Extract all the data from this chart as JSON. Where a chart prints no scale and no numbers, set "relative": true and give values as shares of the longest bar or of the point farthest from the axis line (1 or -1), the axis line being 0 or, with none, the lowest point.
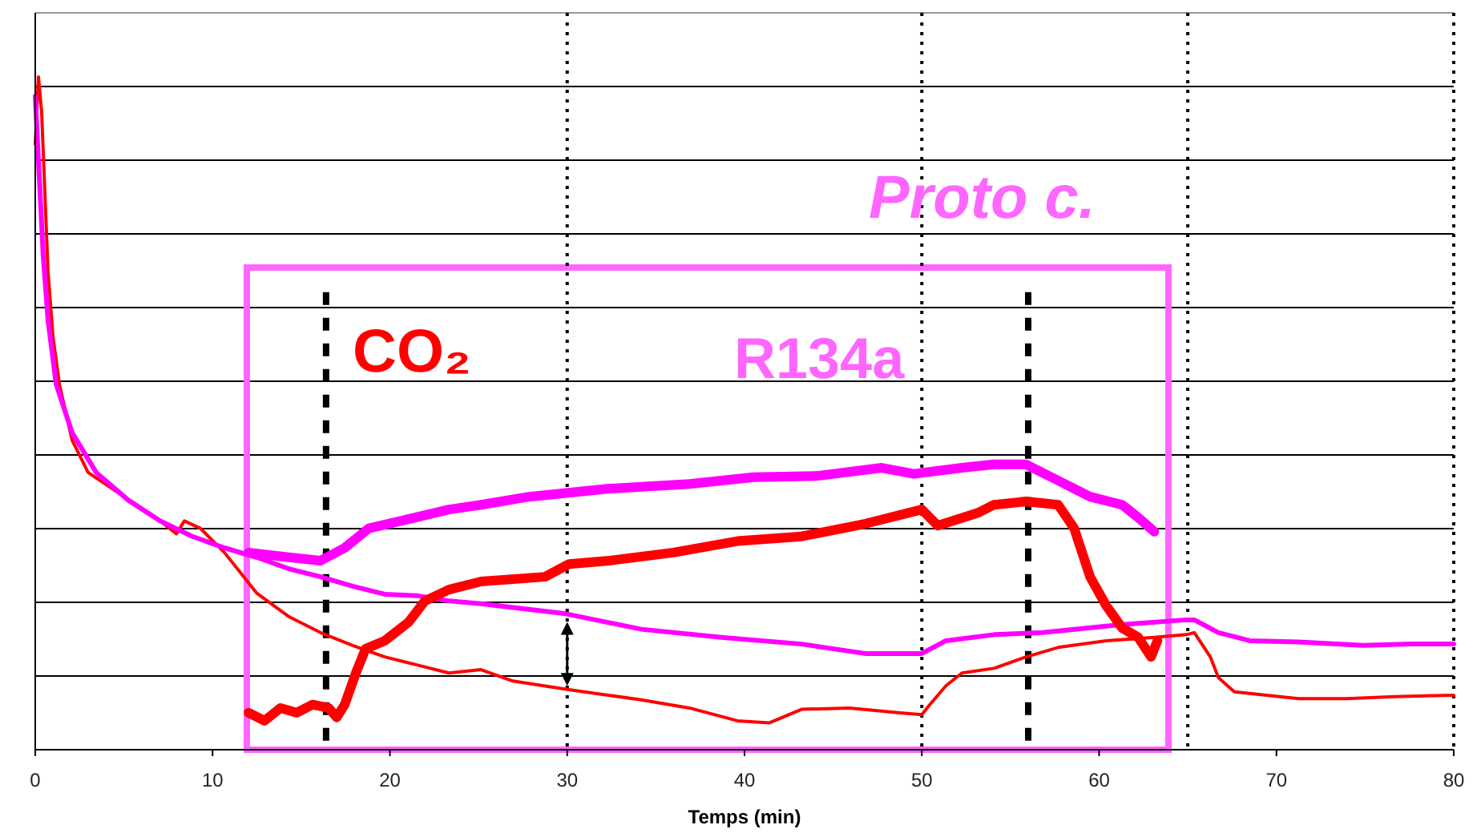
{
  "chart_data": {
    "type": "line",
    "relative": true,
    "xlabel": "Temps (min)",
    "xlim": [
      0,
      80
    ],
    "xticks": [
      0,
      10,
      20,
      30,
      40,
      50,
      60,
      70,
      80
    ],
    "tick_labels": "x",
    "grid": "y",
    "line_style": "solid",
    "annotations": [
      "CO₂",
      "R134a",
      "Proto c."
    ],
    "ref_lines": [
      {
        "axis": "x",
        "value": 16.4,
        "color": "#000000",
        "line_style": "dashed"
      },
      {
        "axis": "x",
        "value": 56,
        "color": "#000000",
        "line_style": "dashed"
      },
      {
        "axis": "x",
        "value": 30,
        "color": "#000000",
        "line_style": "dotted"
      },
      {
        "axis": "x",
        "value": 50,
        "color": "#000000",
        "line_style": "dotted"
      },
      {
        "axis": "x",
        "value": 65,
        "color": "#000000",
        "line_style": "dotted"
      }
    ],
    "series": [
      {
        "color": "#ff0000",
        "x": [
          0,
          0.18,
          0.36,
          0.54,
          0.72,
          1.0,
          1.36,
          2.08,
          2.98,
          4.34,
          5.7,
          7.05,
          7.96,
          8.41,
          9.31,
          10.67,
          12.48,
          14.29,
          16.09,
          17.9,
          19.71,
          21.52,
          23.33,
          25.14,
          26.94,
          29.93,
          34.18,
          36.89,
          39.6,
          41.41,
          43.22,
          45.93,
          48.64,
          50,
          50.45,
          51.36,
          52.26,
          54.07,
          55.88,
          57.69,
          60.4,
          63.11,
          64.92,
          65.37,
          66.27,
          66.73,
          67.63,
          69.44,
          71.25,
          73.96,
          76.67,
          80
        ],
        "values": [
          0.9,
          1.0,
          0.948,
          0.829,
          0.71,
          0.614,
          0.543,
          0.46,
          0.412,
          0.388,
          0.364,
          0.34,
          0.321,
          0.34,
          0.329,
          0.293,
          0.233,
          0.198,
          0.174,
          0.155,
          0.138,
          0.126,
          0.114,
          0.119,
          0.102,
          0.09,
          0.074,
          0.062,
          0.043,
          0.04,
          0.06,
          0.062,
          0.055,
          0.052,
          0.067,
          0.095,
          0.114,
          0.121,
          0.138,
          0.152,
          0.162,
          0.167,
          0.171,
          0.174,
          0.138,
          0.107,
          0.086,
          0.081,
          0.076,
          0.076,
          0.079,
          0.081
        ]
      },
      {
        "color": "#ff00ff",
        "x": [
          0,
          0.18,
          0.45,
          0.72,
          1.18,
          2.08,
          3.44,
          5.24,
          7.05,
          8.86,
          10.67,
          12.48,
          14.29,
          16.09,
          17.9,
          19.71,
          21.52,
          23.33,
          25.14,
          29.93,
          34.18,
          38.7,
          43.22,
          46.8,
          50,
          51.36,
          54.07,
          56.8,
          61.3,
          64.92,
          65.37,
          66.73,
          68.5,
          71.25,
          74.9,
          77.6,
          80
        ],
        "values": [
          0.971,
          0.876,
          0.733,
          0.638,
          0.543,
          0.471,
          0.412,
          0.371,
          0.34,
          0.317,
          0.3,
          0.286,
          0.269,
          0.257,
          0.243,
          0.231,
          0.229,
          0.221,
          0.217,
          0.202,
          0.179,
          0.167,
          0.157,
          0.143,
          0.143,
          0.162,
          0.171,
          0.174,
          0.186,
          0.193,
          0.193,
          0.174,
          0.162,
          0.16,
          0.155,
          0.157,
          0.157
        ]
      },
      {
        "color": "#ff00ff",
        "x": [
          12.03,
          14.29,
          16.09,
          17.45,
          18.81,
          20.61,
          23.33,
          25.14,
          27.85,
          32.37,
          36.89,
          40.51,
          44.12,
          47.74,
          49.55,
          52.26,
          54.07,
          55.88,
          57.69,
          59.49,
          61.3,
          62.21,
          63.11
        ],
        "values": [
          0.293,
          0.286,
          0.281,
          0.3,
          0.329,
          0.34,
          0.357,
          0.364,
          0.376,
          0.388,
          0.395,
          0.405,
          0.407,
          0.419,
          0.41,
          0.419,
          0.424,
          0.424,
          0.4,
          0.376,
          0.364,
          0.345,
          0.324
        ]
      },
      {
        "color": "#ff0000",
        "x": [
          12.03,
          12.93,
          13.83,
          14.74,
          15.64,
          16.55,
          17.0,
          17.45,
          18.08,
          18.63,
          19.71,
          21.07,
          21.97,
          23.33,
          25.14,
          28.75,
          30.11,
          32.37,
          35.99,
          39.6,
          43.22,
          46.83,
          50,
          50.9,
          53.16,
          54.07,
          55.88,
          57.69,
          58.59,
          59.49,
          60.4,
          61.3,
          62.2,
          62.93,
          63.29
        ],
        "values": [
          0.055,
          0.043,
          0.062,
          0.055,
          0.067,
          0.062,
          0.048,
          0.067,
          0.114,
          0.15,
          0.162,
          0.19,
          0.221,
          0.238,
          0.25,
          0.257,
          0.276,
          0.281,
          0.293,
          0.31,
          0.317,
          0.336,
          0.357,
          0.333,
          0.352,
          0.364,
          0.369,
          0.364,
          0.329,
          0.257,
          0.214,
          0.181,
          0.167,
          0.138,
          0.162
        ]
      }
    ]
  }
}
